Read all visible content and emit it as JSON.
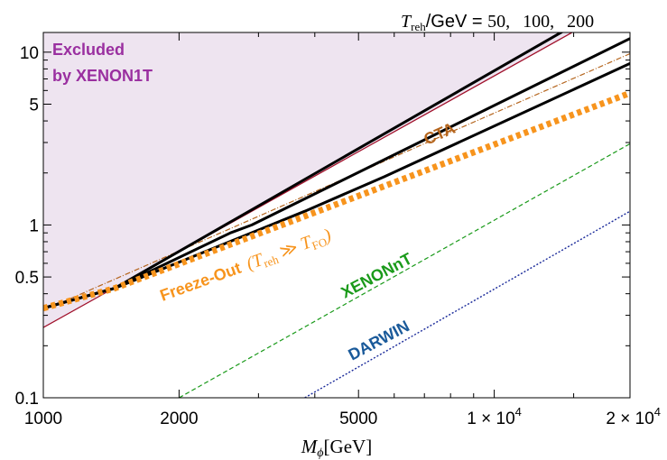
{
  "chart_data": {
    "type": "line",
    "xscale": "log",
    "yscale": "log",
    "xlim": [
      1000,
      20000
    ],
    "ylim": [
      0.1,
      13
    ],
    "xlabel": {
      "main": "M",
      "sub": "ϕ",
      "unit": "[GeV]"
    },
    "x_ticks": [
      {
        "value": 1000,
        "label": "1000"
      },
      {
        "value": 2000,
        "label": "2000"
      },
      {
        "value": 5000,
        "label": "5000"
      },
      {
        "value": 10000,
        "label": "1 × 10",
        "exp": "4"
      },
      {
        "value": 20000,
        "label": "2 × 10",
        "exp": "4"
      }
    ],
    "y_ticks": [
      {
        "value": 0.1,
        "label": "0.1"
      },
      {
        "value": 0.5,
        "label": "0.5"
      },
      {
        "value": 1,
        "label": "1"
      },
      {
        "value": 5,
        "label": "5"
      },
      {
        "value": 10,
        "label": "10"
      }
    ],
    "header": {
      "var": "T",
      "sub": "reh",
      "unit": "/GeV = ",
      "values": [
        "50,",
        "100,",
        "200"
      ]
    },
    "excluded_region": {
      "line1": "Excluded",
      "line2": "by XENON1T",
      "fill": "#eee4f0",
      "boundary_color": "#a0102a",
      "text_color": "#9a2fa0",
      "boundary": {
        "x": [
          1000,
          20000
        ],
        "y": [
          0.255,
          20
        ]
      }
    },
    "series": [
      {
        "key": "t50",
        "style": "black-solid",
        "color": "#000000",
        "x": [
          1000,
          1440,
          20000
        ],
        "y": [
          0.33,
          0.43,
          22
        ]
      },
      {
        "key": "t100",
        "style": "black-solid",
        "color": "#000000",
        "x": [
          1000,
          1440,
          2600,
          2900,
          20000
        ],
        "y": [
          0.33,
          0.43,
          0.9,
          1.0,
          12
        ]
      },
      {
        "key": "t200",
        "style": "black-solid",
        "color": "#000000",
        "x": [
          1000,
          1440,
          3800,
          5700,
          20000
        ],
        "y": [
          0.33,
          0.43,
          1.2,
          1.9,
          8.6
        ]
      },
      {
        "key": "cta",
        "name": "CTA",
        "style": "dash-dot",
        "color": "#b5651d",
        "x": [
          1000,
          20000
        ],
        "y": [
          0.32,
          9.8
        ]
      },
      {
        "key": "freeze",
        "name": "Freeze-Out",
        "style": "thick-dotted",
        "color": "#f7941d",
        "x": [
          1000,
          1440,
          20000
        ],
        "y": [
          0.33,
          0.43,
          5.8
        ]
      },
      {
        "key": "xenonnt",
        "name": "XENONnT",
        "style": "dashed",
        "color": "#1a9a1a",
        "x": [
          2000,
          20000
        ],
        "y": [
          0.1,
          2.95
        ]
      },
      {
        "key": "darwin",
        "name": "DARWIN",
        "style": "dotted",
        "color": "#1a2a9a",
        "x": [
          3800,
          20000
        ],
        "y": [
          0.1,
          1.2
        ]
      }
    ],
    "annotations": {
      "cta": {
        "text": "CTA",
        "color": "#b5651d"
      },
      "freeze": {
        "text": "Freeze-Out",
        "paren_open": "(",
        "t": "T",
        "t_sub": "reh",
        "rel": " ≫ ",
        "t2": "T",
        "t2_sub": "FO",
        "paren_close": ")",
        "color": "#f7941d"
      },
      "xenonnt": {
        "text": "XENONnT",
        "color": "#1a9a1a"
      },
      "darwin": {
        "text": "DARWIN",
        "color": "#1a5a9a"
      }
    }
  }
}
